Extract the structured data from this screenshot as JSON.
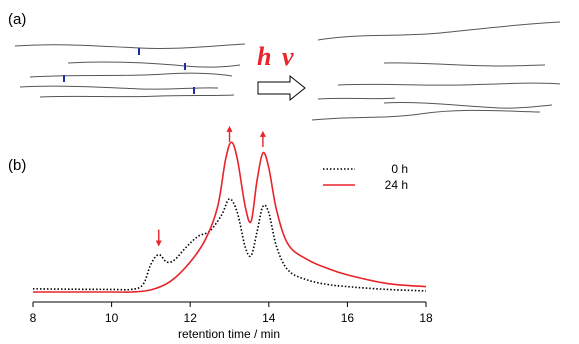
{
  "panel_a": {
    "label": "(a)",
    "photon_h": "h",
    "photon_nu": "ν",
    "photon_color": "#e8232a",
    "chain_color": "#555555",
    "crosslink_color": "#1a2ea8"
  },
  "panel_b": {
    "label": "(b)"
  },
  "chart_data": {
    "type": "line",
    "xlabel": "retention time / min",
    "ylabel": "",
    "xlim": [
      8,
      18
    ],
    "ylim": [
      0,
      1
    ],
    "xticks": [
      8,
      10,
      12,
      14,
      16,
      18
    ],
    "grid": false,
    "legend_position": "top-right",
    "series": [
      {
        "name": "0 h",
        "style": "dotted",
        "color": "#000000",
        "points": [
          [
            8.0,
            0.015
          ],
          [
            9.0,
            0.013
          ],
          [
            10.0,
            0.012
          ],
          [
            10.5,
            0.012
          ],
          [
            10.8,
            0.035
          ],
          [
            11.0,
            0.13
          ],
          [
            11.2,
            0.175
          ],
          [
            11.4,
            0.14
          ],
          [
            11.6,
            0.15
          ],
          [
            11.9,
            0.21
          ],
          [
            12.2,
            0.26
          ],
          [
            12.5,
            0.285
          ],
          [
            12.8,
            0.36
          ],
          [
            13.0,
            0.435
          ],
          [
            13.2,
            0.37
          ],
          [
            13.4,
            0.21
          ],
          [
            13.55,
            0.17
          ],
          [
            13.7,
            0.28
          ],
          [
            13.85,
            0.4
          ],
          [
            14.0,
            0.37
          ],
          [
            14.2,
            0.21
          ],
          [
            14.5,
            0.1
          ],
          [
            15.0,
            0.055
          ],
          [
            15.5,
            0.035
          ],
          [
            16.0,
            0.025
          ],
          [
            17.0,
            0.012
          ],
          [
            18.0,
            0.005
          ]
        ]
      },
      {
        "name": "24 h",
        "style": "solid",
        "color": "#e8232a",
        "points": [
          [
            8.0,
            0.0
          ],
          [
            10.0,
            0.0
          ],
          [
            10.5,
            0.0
          ],
          [
            11.0,
            0.01
          ],
          [
            11.5,
            0.05
          ],
          [
            12.0,
            0.14
          ],
          [
            12.4,
            0.25
          ],
          [
            12.7,
            0.4
          ],
          [
            12.9,
            0.62
          ],
          [
            13.05,
            0.7
          ],
          [
            13.2,
            0.62
          ],
          [
            13.4,
            0.4
          ],
          [
            13.55,
            0.33
          ],
          [
            13.7,
            0.52
          ],
          [
            13.85,
            0.65
          ],
          [
            14.0,
            0.58
          ],
          [
            14.2,
            0.38
          ],
          [
            14.5,
            0.22
          ],
          [
            15.0,
            0.15
          ],
          [
            15.5,
            0.11
          ],
          [
            16.0,
            0.08
          ],
          [
            17.0,
            0.04
          ],
          [
            18.0,
            0.025
          ]
        ]
      }
    ],
    "annotations": [
      {
        "type": "arrow-down",
        "x": 11.2,
        "color": "#e8232a"
      },
      {
        "type": "arrow-up",
        "x": 13.0,
        "color": "#e8232a"
      },
      {
        "type": "arrow-up",
        "x": 13.85,
        "color": "#e8232a"
      }
    ]
  }
}
